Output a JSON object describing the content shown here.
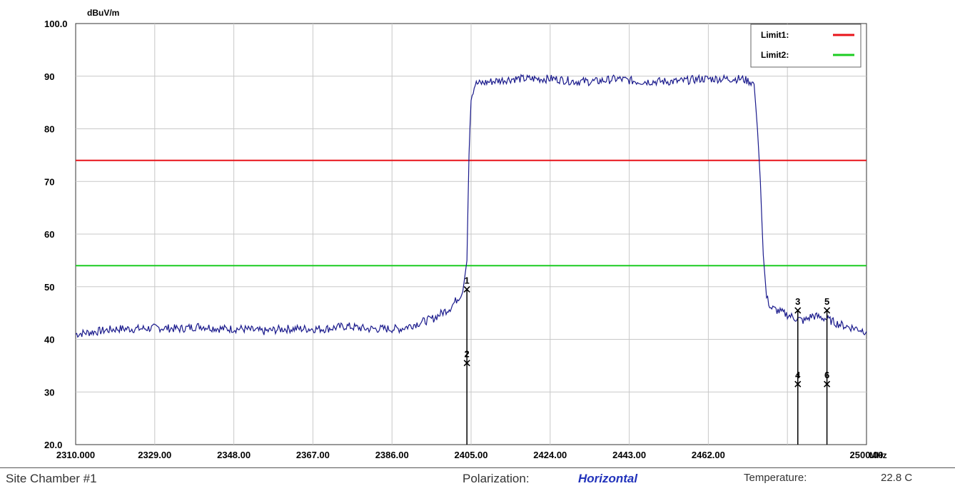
{
  "chart_data": {
    "type": "line",
    "ylabel_unit": "dBuV/m",
    "xlabel_unit": "MHz",
    "xlim": [
      2310,
      2500
    ],
    "ylim": [
      20,
      100
    ],
    "x_ticks": [
      2310,
      2329,
      2348,
      2367,
      2386,
      2405,
      2424,
      2443,
      2462,
      2500
    ],
    "x_tick_labels": [
      "2310.000",
      "2329.00",
      "2348.00",
      "2367.00",
      "2386.00",
      "2405.00",
      "2424.00",
      "2443.00",
      "2462.00",
      "2500.00"
    ],
    "y_ticks": [
      20,
      30,
      40,
      50,
      60,
      70,
      80,
      90,
      100
    ],
    "y_tick_labels": [
      "20.0",
      "30",
      "40",
      "50",
      "60",
      "70",
      "80",
      "90",
      "100.0"
    ],
    "grid": true,
    "legend_position": "top-right",
    "limits": [
      {
        "name": "Limit1:",
        "value": 74,
        "color": "#e8141a"
      },
      {
        "name": "Limit2:",
        "value": 54,
        "color": "#1ccc22"
      }
    ],
    "trace": {
      "color": "#1a1a8c",
      "points": [
        [
          2310,
          41
        ],
        [
          2315,
          41.5
        ],
        [
          2320,
          42
        ],
        [
          2325,
          42
        ],
        [
          2330,
          42.2
        ],
        [
          2335,
          42
        ],
        [
          2340,
          42.5
        ],
        [
          2345,
          42
        ],
        [
          2350,
          42
        ],
        [
          2355,
          41.5
        ],
        [
          2360,
          42
        ],
        [
          2365,
          42
        ],
        [
          2370,
          42
        ],
        [
          2375,
          42.5
        ],
        [
          2380,
          42
        ],
        [
          2385,
          42
        ],
        [
          2388,
          42
        ],
        [
          2392,
          43
        ],
        [
          2396,
          44
        ],
        [
          2400,
          46
        ],
        [
          2403,
          49
        ],
        [
          2404,
          55
        ],
        [
          2404.5,
          75
        ],
        [
          2405,
          86
        ],
        [
          2406,
          88.5
        ],
        [
          2410,
          89
        ],
        [
          2415,
          89.5
        ],
        [
          2420,
          89.5
        ],
        [
          2425,
          89.5
        ],
        [
          2430,
          89
        ],
        [
          2435,
          89
        ],
        [
          2440,
          89.5
        ],
        [
          2445,
          89
        ],
        [
          2450,
          89
        ],
        [
          2455,
          89
        ],
        [
          2460,
          89.5
        ],
        [
          2465,
          89.5
        ],
        [
          2470,
          89.5
        ],
        [
          2472,
          89
        ],
        [
          2473,
          88.5
        ],
        [
          2473.8,
          80
        ],
        [
          2474.5,
          70
        ],
        [
          2475.2,
          56
        ],
        [
          2476,
          48
        ],
        [
          2477,
          46
        ],
        [
          2480,
          45
        ],
        [
          2483,
          44
        ],
        [
          2485,
          43.5
        ],
        [
          2487,
          44.5
        ],
        [
          2490,
          44
        ],
        [
          2493,
          43
        ],
        [
          2495,
          42.5
        ],
        [
          2498,
          42
        ],
        [
          2500,
          41.5
        ]
      ]
    },
    "markers": [
      {
        "label": "1",
        "x": 2404,
        "y": 49.5
      },
      {
        "label": "2",
        "x": 2404,
        "y": 35.5
      },
      {
        "label": "3",
        "x": 2483.5,
        "y": 45.5
      },
      {
        "label": "4",
        "x": 2483.5,
        "y": 31.5
      },
      {
        "label": "5",
        "x": 2490.5,
        "y": 45.5
      },
      {
        "label": "6",
        "x": 2490.5,
        "y": 31.5
      }
    ]
  },
  "footer": {
    "site": "Site  Chamber #1",
    "polarization_label": "Polarization:",
    "polarization_value": "Horizontal",
    "temperature_label": "Temperature:",
    "temperature_value": "22.8 C"
  }
}
